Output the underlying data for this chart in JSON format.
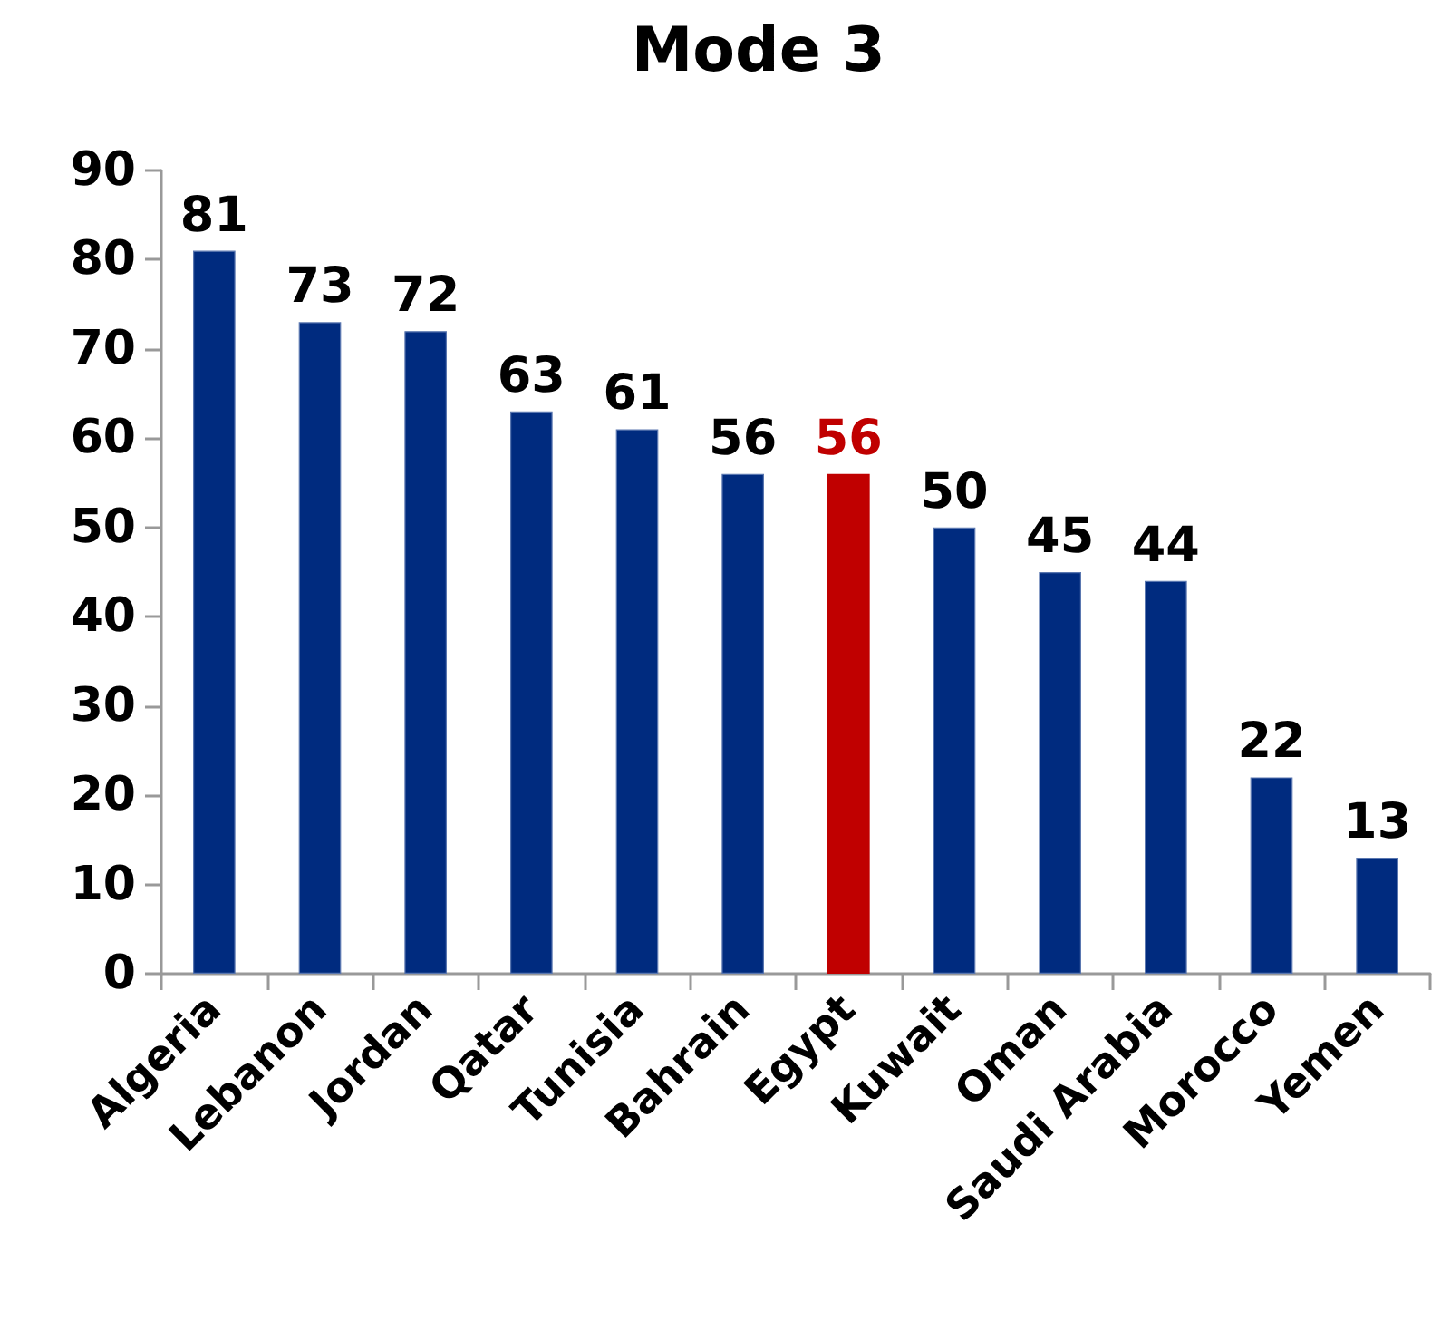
{
  "chart_data": {
    "type": "bar",
    "title": "Mode 3",
    "categories": [
      "Algeria",
      "Lebanon",
      "Jordan",
      "Qatar",
      "Tunisia",
      "Bahrain",
      "Egypt",
      "Kuwait",
      "Oman",
      "Saudi Arabia",
      "Morocco",
      "Yemen"
    ],
    "values": [
      81,
      73,
      72,
      63,
      61,
      56,
      56,
      50,
      45,
      44,
      22,
      13
    ],
    "colors": [
      "#002b7f",
      "#002b7f",
      "#002b7f",
      "#002b7f",
      "#002b7f",
      "#002b7f",
      "#c00000",
      "#002b7f",
      "#002b7f",
      "#002b7f",
      "#002b7f",
      "#002b7f"
    ],
    "ylim": [
      0,
      90
    ],
    "yticks": [
      0,
      10,
      20,
      30,
      40,
      50,
      60,
      70,
      80,
      90
    ],
    "data_labels": true
  }
}
